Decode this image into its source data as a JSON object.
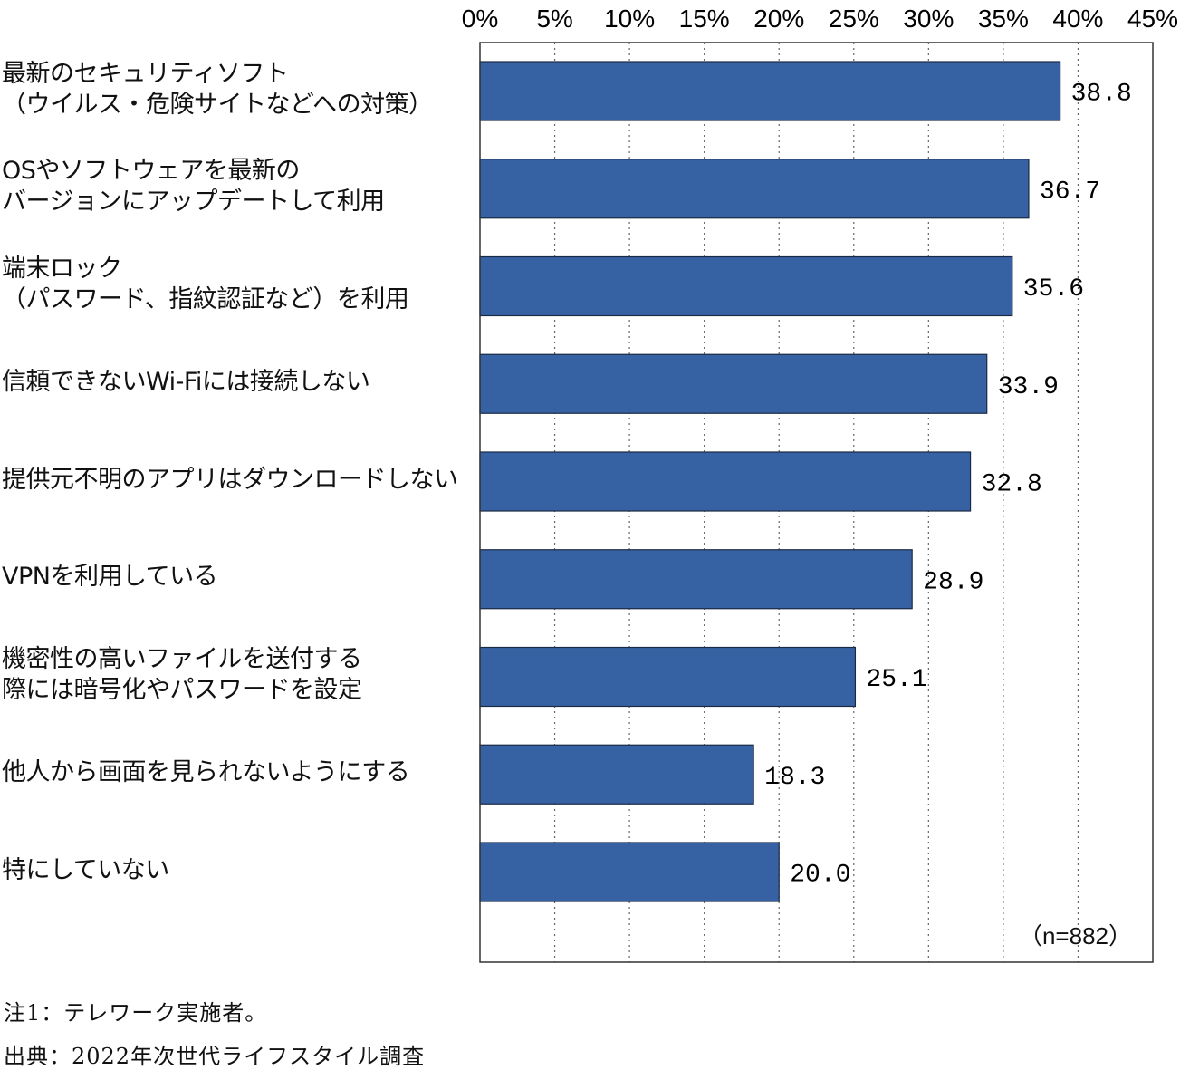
{
  "chart_data": {
    "type": "bar",
    "orientation": "horizontal",
    "categories": [
      [
        "最新のセキュリティソフト",
        "（ウイルス・危険サイトなどへの対策）"
      ],
      [
        "OSやソフトウェアを最新の",
        "バージョンにアップデートして利用"
      ],
      [
        "端末ロック",
        "（パスワード、指紋認証など）を利用"
      ],
      [
        "信頼できないWi-Fiには接続しない"
      ],
      [
        "提供元不明のアプリはダウンロードしない"
      ],
      [
        "VPNを利用している"
      ],
      [
        "機密性の高いファイルを送付する",
        "際には暗号化やパスワードを設定"
      ],
      [
        "他人から画面を見られないようにする"
      ],
      [
        "特にしていない"
      ]
    ],
    "values": [
      38.8,
      36.7,
      35.6,
      33.9,
      32.8,
      28.9,
      25.1,
      18.3,
      20.0
    ],
    "value_labels": [
      "38.8",
      "36.7",
      "35.6",
      "33.9",
      "32.8",
      "28.9",
      "25.1",
      "18.3",
      "20.0"
    ],
    "xlim": [
      0,
      45
    ],
    "x_ticks": [
      "0%",
      "5%",
      "10%",
      "15%",
      "20%",
      "25%",
      "30%",
      "35%",
      "40%",
      "45%"
    ],
    "grid": "vertical dotted",
    "annotation": "（n=882）",
    "bar_color": "#3662a4"
  },
  "notes": {
    "note1": "注1：テレワーク実施者。",
    "source": "出典：2022年次世代ライフスタイル調査"
  }
}
